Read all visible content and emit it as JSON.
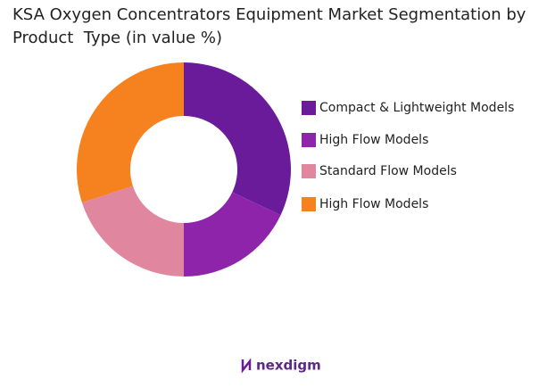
{
  "chart_data": {
    "type": "donut",
    "title": "KSA Oxygen Concentrators Equipment Market Segmentation by Product  Type (in value %)",
    "categories": [
      "Compact & Lightweight Models",
      "High Flow Models",
      "Standard Flow Models",
      "High Flow Models"
    ],
    "values": [
      32,
      18,
      20,
      30
    ],
    "colors": [
      "#6a1b9a",
      "#8e24aa",
      "#e0879f",
      "#f5821f"
    ],
    "legend": "right"
  },
  "brand": "nexdigm"
}
